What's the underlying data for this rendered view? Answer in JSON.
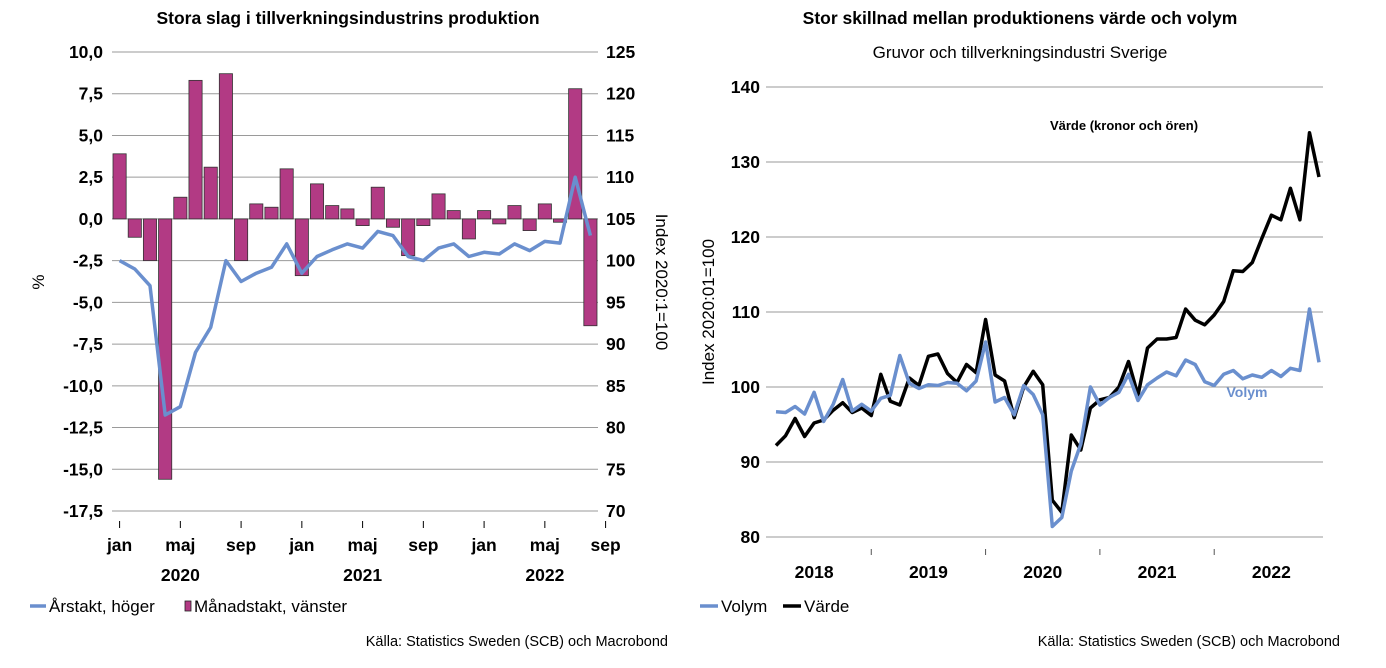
{
  "chart_data": [
    {
      "type": "bar",
      "title": "Stora slag i tillverkningsindustrins produktion",
      "ylabel": "%",
      "y2label": "Index 2020:1=100",
      "ylim": [
        -17.5,
        10.0
      ],
      "y2lim": [
        70,
        125
      ],
      "yticks": [
        "10,0",
        "7,5",
        "5,0",
        "2,5",
        "0,0",
        "-2,5",
        "-5,0",
        "-7,5",
        "-10,0",
        "-12,5",
        "-15,0",
        "-17,5"
      ],
      "y2ticks": [
        "125",
        "120",
        "115",
        "110",
        "105",
        "100",
        "95",
        "90",
        "85",
        "80",
        "75",
        "70"
      ],
      "xticks": [
        "jan",
        "maj",
        "sep",
        "jan",
        "maj",
        "sep",
        "jan",
        "maj",
        "sep"
      ],
      "years": [
        "2020",
        "2021",
        "2022"
      ],
      "grid": true,
      "legend_position": "bottom-left",
      "colors": {
        "line": "#6a8fce",
        "bars": "#b23a84"
      },
      "series": [
        {
          "name": "Årstakt, höger",
          "type": "line",
          "axis": "right",
          "values": [
            100.0,
            99.0,
            97.0,
            81.5,
            82.5,
            89.0,
            92.0,
            100.0,
            97.5,
            98.5,
            99.2,
            102.0,
            98.5,
            100.5,
            101.3,
            102.0,
            101.5,
            103.5,
            103.0,
            100.5,
            100.0,
            101.5,
            102.0,
            100.5,
            101.0,
            100.8,
            102.0,
            101.2,
            102.3,
            102.1,
            110.0,
            103.0
          ]
        },
        {
          "name": "Månadstakt, vänster",
          "type": "bar",
          "axis": "left",
          "values": [
            3.9,
            -1.1,
            -2.5,
            -15.6,
            1.3,
            8.3,
            3.1,
            8.7,
            -2.5,
            0.9,
            0.7,
            3.0,
            -3.4,
            2.1,
            0.8,
            0.6,
            -0.4,
            1.9,
            -0.5,
            -2.2,
            -0.4,
            1.5,
            0.5,
            -1.2,
            0.5,
            -0.3,
            0.8,
            -0.7,
            0.9,
            -0.2,
            7.8,
            -6.4
          ]
        }
      ]
    },
    {
      "type": "line",
      "title": "Stor skillnad mellan produktionens värde och volym",
      "subtitle": "Gruvor och tillverkningsindustri Sverige",
      "ylabel": "Index 2020:01=100",
      "ylim": [
        80,
        140
      ],
      "yticks": [
        "140",
        "130",
        "120",
        "110",
        "100",
        "90",
        "80"
      ],
      "xticks": [
        "2018",
        "2019",
        "2020",
        "2021",
        "2022"
      ],
      "grid": true,
      "legend_position": "bottom-left",
      "annotations": [
        "Värde (kronor och ören)",
        "Volym"
      ],
      "colors": {
        "volym": "#6a8fce",
        "varde": "#000000"
      },
      "series": [
        {
          "name": "Volym",
          "values": [
            96.7,
            96.6,
            97.4,
            96.4,
            99.3,
            95.4,
            97.7,
            101.0,
            96.8,
            97.7,
            96.8,
            98.5,
            98.9,
            104.2,
            100.5,
            99.8,
            100.3,
            100.2,
            100.6,
            100.5,
            99.5,
            100.8,
            106.0,
            98.0,
            98.6,
            96.3,
            100.2,
            99.0,
            96.3,
            81.4,
            82.6,
            88.8,
            92.4,
            100.0,
            97.6,
            98.6,
            99.3,
            101.7,
            98.2,
            100.3,
            101.2,
            102.0,
            101.5,
            103.6,
            103.0,
            100.7,
            100.2,
            101.7,
            102.2,
            101.1,
            101.6,
            101.3,
            102.2,
            101.4,
            102.5,
            102.2,
            110.4,
            103.3
          ]
        },
        {
          "name": "Värde",
          "values": [
            92.2,
            93.5,
            95.8,
            93.4,
            95.2,
            95.6,
            96.9,
            97.9,
            96.6,
            97.2,
            96.2,
            101.7,
            98.1,
            97.6,
            101.2,
            100.2,
            104.1,
            104.4,
            101.8,
            100.6,
            103.0,
            101.9,
            109.0,
            101.6,
            100.8,
            95.9,
            100.0,
            102.1,
            100.3,
            84.9,
            83.3,
            93.6,
            91.6,
            97.2,
            98.3,
            98.6,
            100.0,
            103.4,
            98.9,
            105.2,
            106.4,
            106.4,
            106.6,
            110.4,
            108.9,
            108.3,
            109.6,
            111.4,
            115.5,
            115.4,
            116.6,
            119.8,
            122.9,
            122.3,
            126.5,
            122.3,
            133.9,
            128.0
          ]
        }
      ]
    }
  ],
  "footer": {
    "source_left": "Källa: Statistics Sweden (SCB) och Macrobond",
    "source_right": "Källa: Statistics Sweden (SCB) och Macrobond"
  }
}
